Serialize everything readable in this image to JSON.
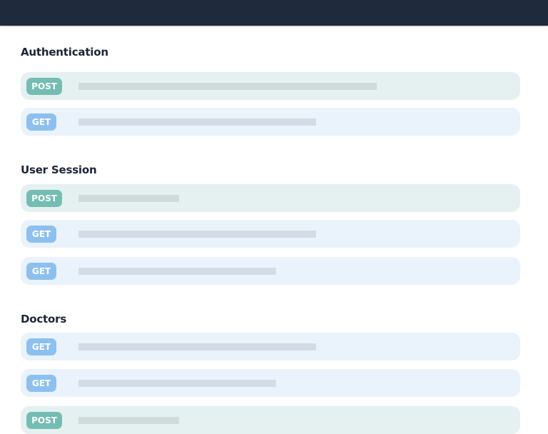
{
  "header": {
    "color": "#1f2a3d"
  },
  "colors": {
    "post_badge": "#74bdb3",
    "get_badge": "#8cc0ef",
    "post_row": "#e5f1f1",
    "get_row": "#eaf2fc"
  },
  "sections": [
    {
      "title": "Authentication",
      "endpoints": [
        {
          "method": "POST"
        },
        {
          "method": "GET"
        }
      ]
    },
    {
      "title": "User Session",
      "endpoints": [
        {
          "method": "POST"
        },
        {
          "method": "GET"
        },
        {
          "method": "GET"
        }
      ]
    },
    {
      "title": "Doctors",
      "endpoints": [
        {
          "method": "GET"
        },
        {
          "method": "GET"
        },
        {
          "method": "POST"
        }
      ]
    }
  ]
}
